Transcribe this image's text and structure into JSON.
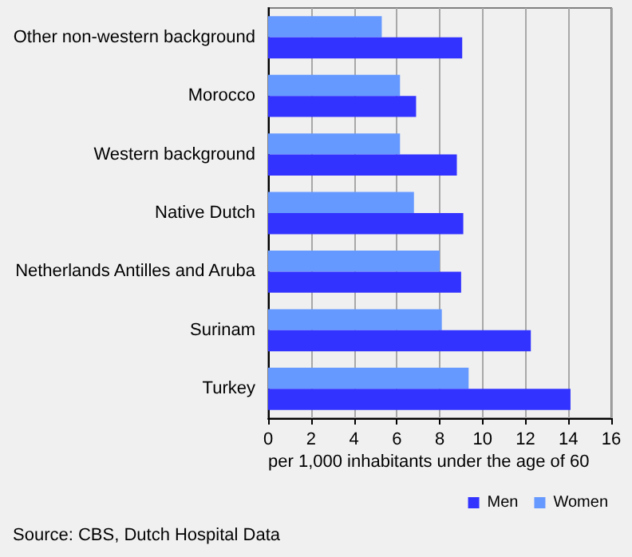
{
  "chart_data": {
    "type": "bar",
    "orientation": "horizontal",
    "categories": [
      "Other non-western background",
      "Morocco",
      "Western background",
      "Native Dutch",
      "Netherlands Antilles and Aruba",
      "Surinam",
      "Turkey"
    ],
    "series": [
      {
        "name": "Men",
        "color": "#3333ff",
        "values": [
          9.05,
          6.9,
          8.8,
          9.1,
          9.0,
          12.25,
          14.1
        ]
      },
      {
        "name": "Women",
        "color": "#6699ff",
        "values": [
          5.3,
          6.15,
          6.15,
          6.8,
          8.0,
          8.1,
          9.35
        ]
      }
    ],
    "xlabel": "per 1,000 inhabitants under the age of 60",
    "xlim": [
      0,
      16
    ],
    "xticks": [
      0,
      2,
      4,
      6,
      8,
      10,
      12,
      14,
      16
    ],
    "grid": "x",
    "legend": "bottom right",
    "annotations": [
      "Source: CBS, Dutch Hospital Data"
    ]
  }
}
